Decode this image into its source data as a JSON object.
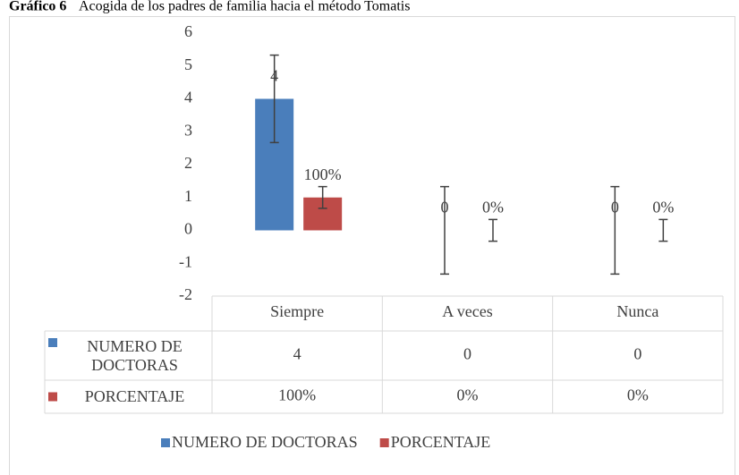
{
  "chart_data": {
    "type": "bar",
    "title_label": "Gráfico 6",
    "title": "Acogida de los padres de familia hacia el método Tomatis",
    "categories": [
      "Siempre",
      "A veces",
      "Nunca"
    ],
    "series": [
      {
        "name": "NUMERO DE DOCTORAS",
        "color": "#4a7ebb",
        "values": [
          4,
          0,
          0
        ],
        "errors": [
          1.33,
          1.33,
          1.33
        ]
      },
      {
        "name": "PORCENTAJE",
        "color": "#be4b48",
        "values": [
          1,
          0,
          0
        ],
        "value_labels": [
          "100%",
          "0%",
          "0%"
        ],
        "errors": [
          0.33,
          0.33,
          0.33
        ]
      }
    ],
    "ylim": [
      -2,
      6
    ],
    "yticks": [
      -2,
      -1,
      0,
      1,
      2,
      3,
      4,
      5,
      6
    ],
    "grid": false,
    "legend": "bottom"
  }
}
